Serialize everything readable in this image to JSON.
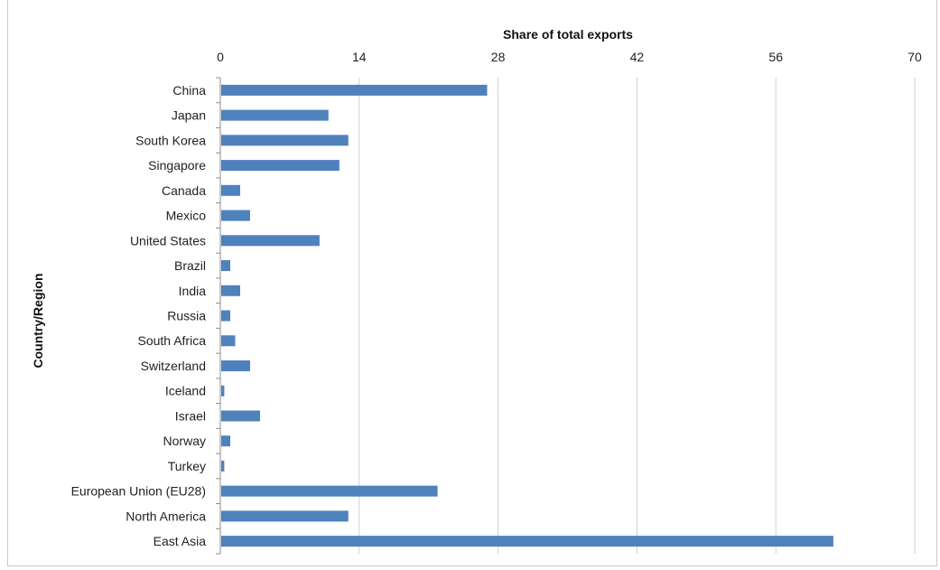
{
  "chart_data": {
    "type": "bar",
    "orientation": "horizontal",
    "title": "",
    "xlabel": "Share of total exports",
    "ylabel": "Country/Region",
    "xlim": [
      0,
      70
    ],
    "x_ticks": [
      0,
      14,
      28,
      42,
      56,
      70
    ],
    "x_axis_position": "top",
    "grid": true,
    "legend": "none",
    "bar_color": "#4f81bd",
    "categories": [
      "China",
      "Japan",
      "South Korea",
      "Singapore",
      "Canada",
      "Mexico",
      "United States",
      "Brazil",
      "India",
      "Russia",
      "South Africa",
      "Switzerland",
      "Iceland",
      "Israel",
      "Norway",
      "Turkey",
      "European Union (EU28)",
      "North America",
      "East Asia"
    ],
    "values": [
      26.9,
      10.9,
      12.9,
      12.0,
      2.0,
      3.0,
      10.0,
      1.0,
      2.0,
      1.0,
      1.5,
      3.0,
      0.4,
      4.0,
      1.0,
      0.4,
      21.9,
      12.9,
      61.8
    ]
  }
}
